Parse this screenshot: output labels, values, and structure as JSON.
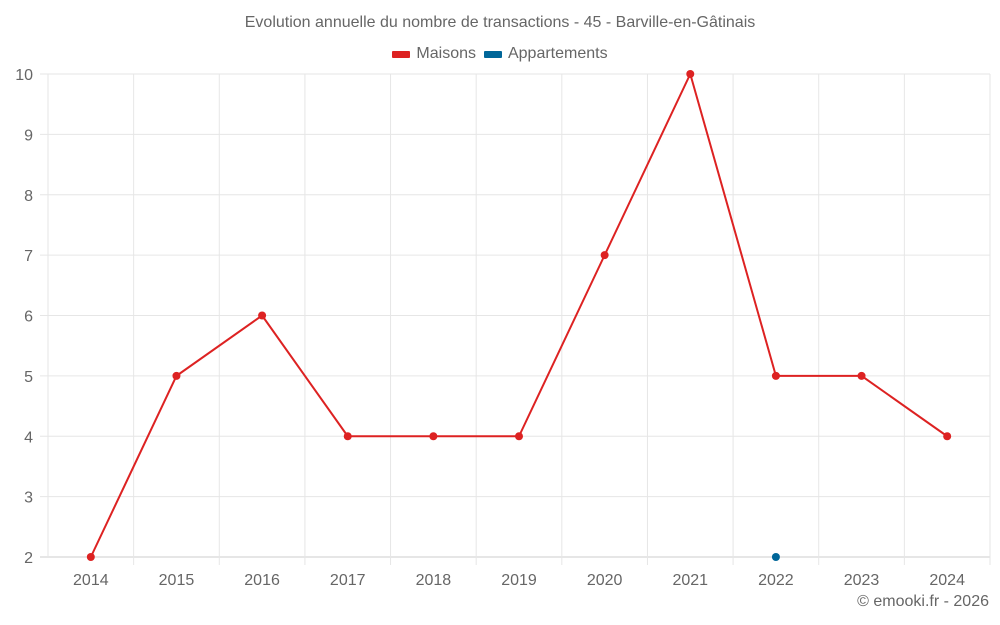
{
  "title": "Evolution annuelle du nombre de transactions - 45 - Barville-en-Gâtinais",
  "legend": [
    {
      "label": "Maisons",
      "color": "#dd2222"
    },
    {
      "label": "Appartements",
      "color": "#006699"
    }
  ],
  "credit": "© emooki.fr - 2026",
  "chart_data": {
    "type": "line",
    "title": "Evolution annuelle du nombre de transactions - 45 - Barville-en-Gâtinais",
    "xlabel": "",
    "ylabel": "",
    "categories": [
      "2014",
      "2015",
      "2016",
      "2017",
      "2018",
      "2019",
      "2020",
      "2021",
      "2022",
      "2023",
      "2024"
    ],
    "series": [
      {
        "name": "Maisons",
        "color": "#dd2222",
        "values": [
          2,
          5,
          6,
          4,
          4,
          4,
          7,
          10,
          5,
          5,
          4
        ]
      },
      {
        "name": "Appartements",
        "color": "#006699",
        "values": [
          null,
          null,
          null,
          null,
          null,
          null,
          null,
          null,
          2,
          null,
          null
        ]
      }
    ],
    "ylim": [
      2,
      10
    ],
    "yticks": [
      2,
      3,
      4,
      5,
      6,
      7,
      8,
      9,
      10
    ],
    "grid": true,
    "legend_position": "top"
  }
}
